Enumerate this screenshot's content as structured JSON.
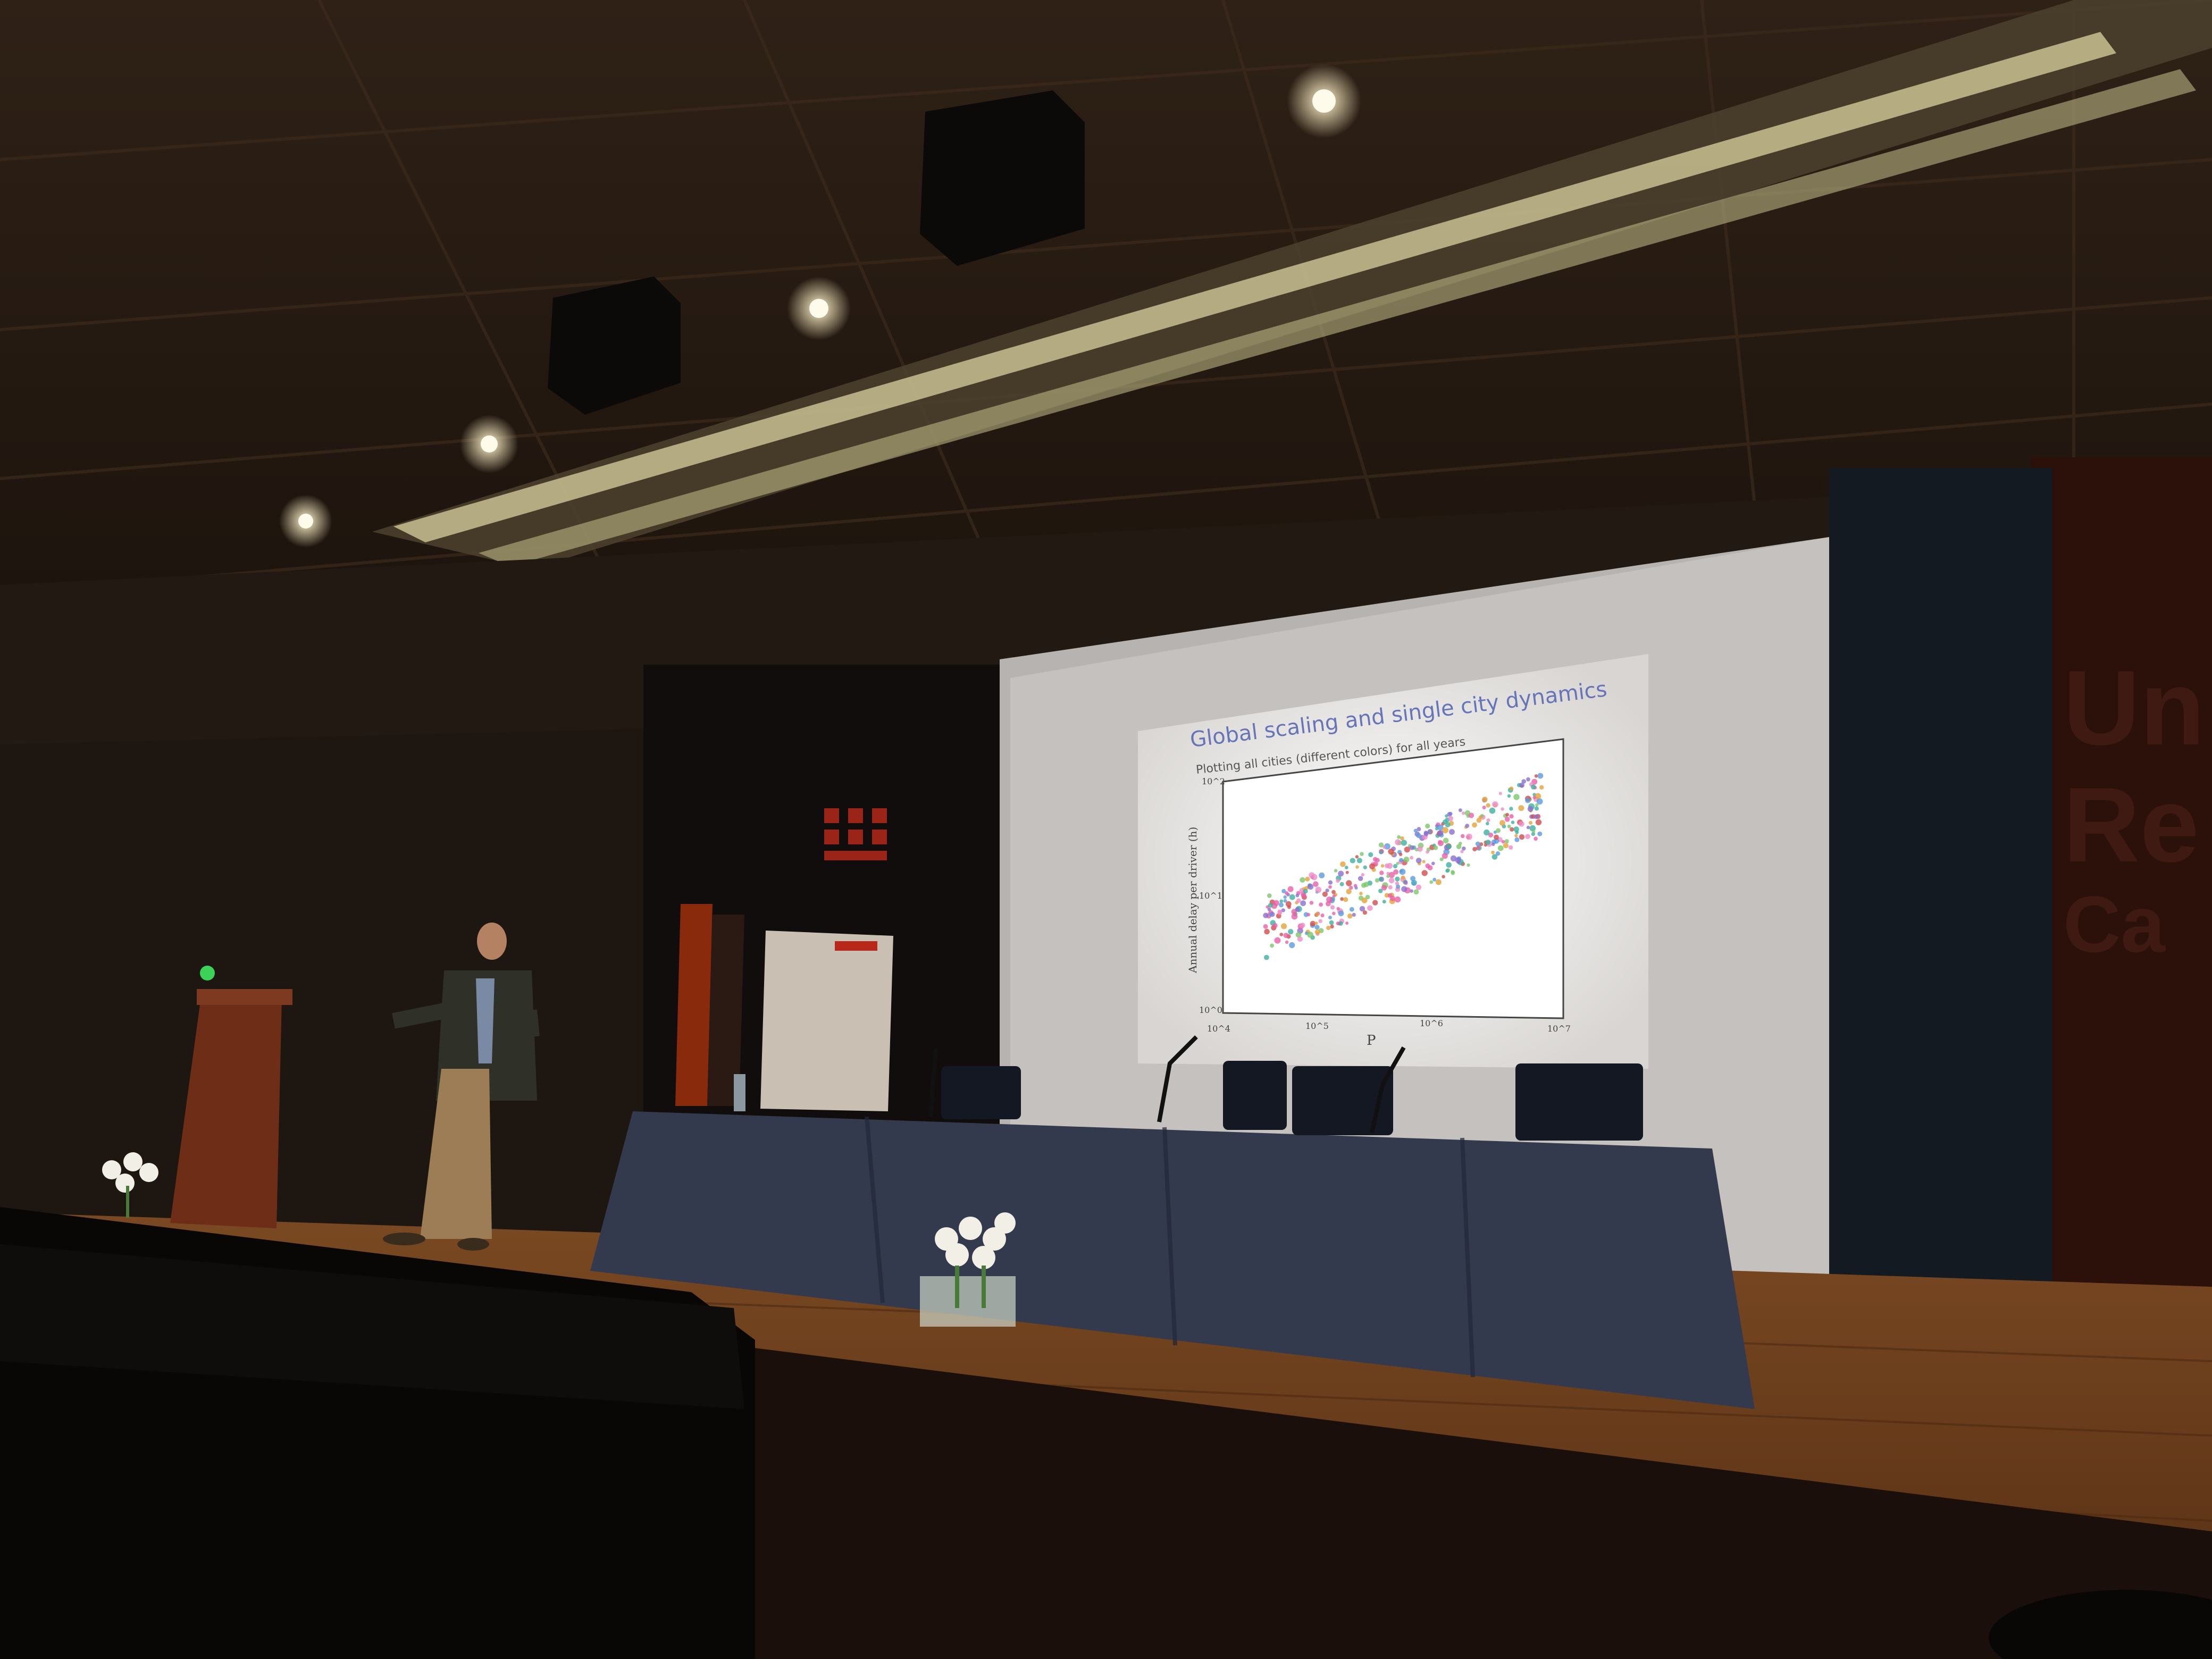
{
  "slide": {
    "title": "Global scaling and single city dynamics",
    "bullet": "Plotting all cities (different colors) for all years",
    "ylabel": "Annual delay per driver (h)",
    "xlabel": "P",
    "xticks": [
      "10^4",
      "10^5",
      "10^6",
      "10^7"
    ],
    "yticks": [
      "10^0",
      "10^1",
      "10^2"
    ]
  },
  "wall_text": [
    "Un",
    "Re",
    "Ca"
  ],
  "colors": {
    "ceiling": "#2a1d13",
    "stage_floor": "#6b3f1f",
    "tablecloth": "#333a4e",
    "screen": "#f4f2ef",
    "podium": "#6e2d17",
    "title_blue": "#5f6fb0"
  }
}
